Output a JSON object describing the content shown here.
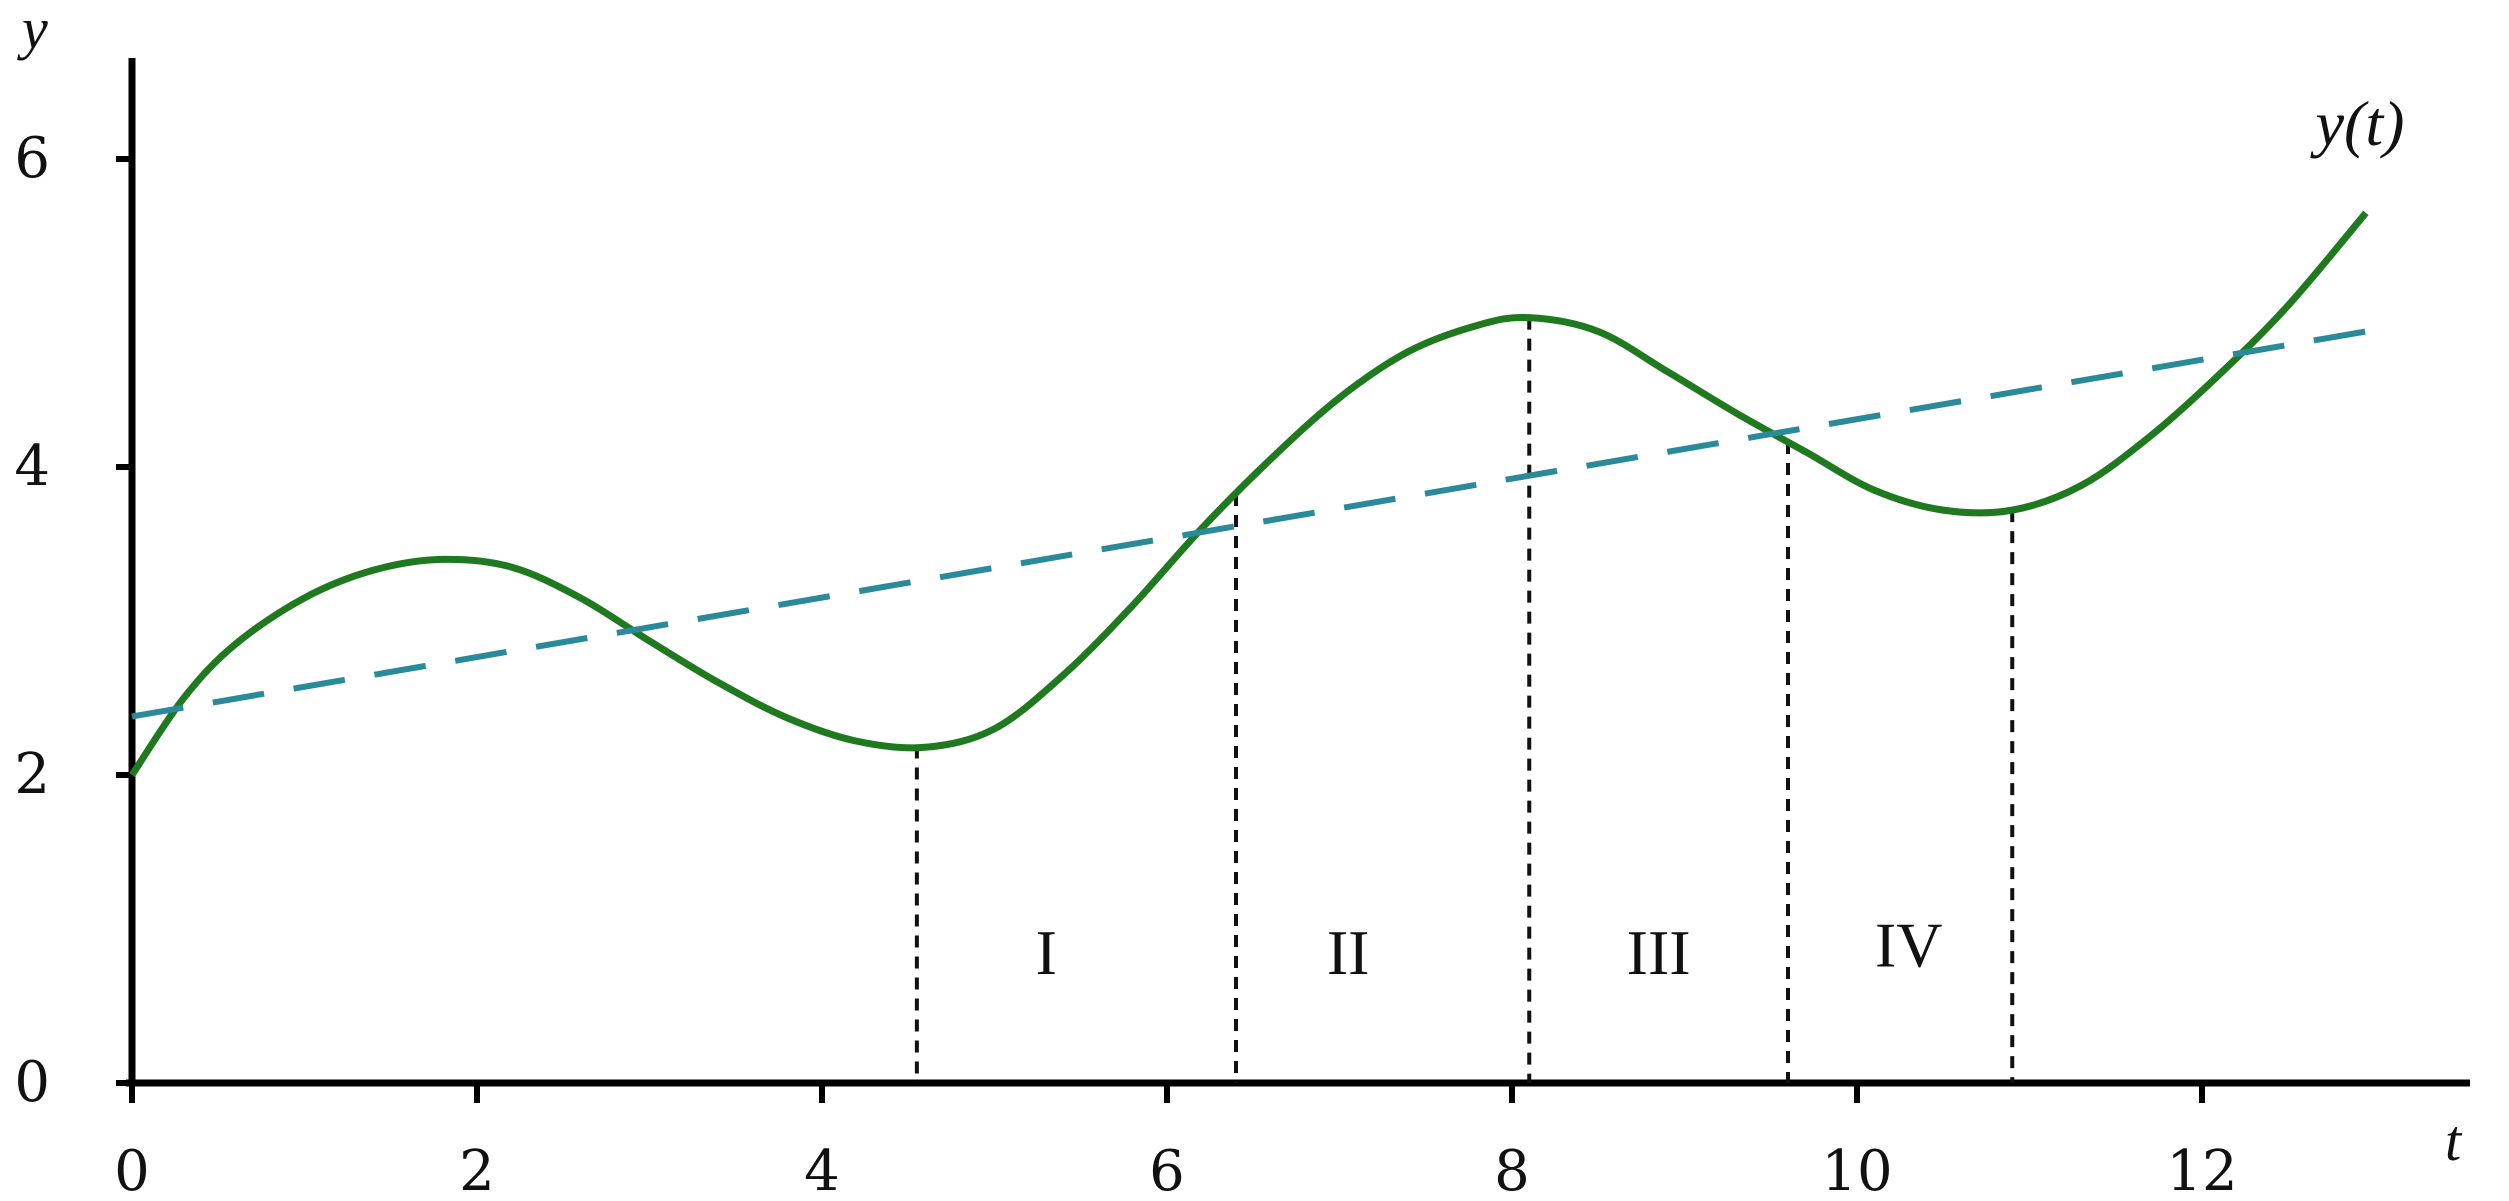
{
  "chart_data": {
    "type": "line",
    "title": "",
    "xlabel": "t",
    "ylabel": "y",
    "xlim": [
      0,
      13
    ],
    "ylim": [
      0,
      6.5
    ],
    "xticks": [
      0,
      2,
      4,
      6,
      8,
      10,
      12
    ],
    "yticks": [
      0,
      2,
      4,
      6
    ],
    "grid": false,
    "series": [
      {
        "name": "y(t)",
        "style": "solid",
        "color": "#1f7a1f",
        "x": [
          0,
          0.3,
          0.6,
          1.0,
          1.4,
          1.8,
          2.2,
          2.6,
          3.0,
          3.4,
          3.8,
          4.2,
          4.6,
          5.0,
          5.4,
          5.8,
          6.2,
          6.6,
          7.0,
          7.4,
          7.8,
          8.1,
          8.5,
          8.9,
          9.3,
          9.7,
          10.1,
          10.5,
          10.9,
          11.3,
          11.7,
          12.1,
          12.5,
          12.95
        ],
        "y": [
          2.0,
          2.5,
          2.85,
          3.15,
          3.33,
          3.4,
          3.35,
          3.15,
          2.87,
          2.6,
          2.37,
          2.22,
          2.18,
          2.3,
          2.65,
          3.1,
          3.6,
          4.05,
          4.45,
          4.75,
          4.92,
          4.97,
          4.88,
          4.62,
          4.35,
          4.1,
          3.85,
          3.72,
          3.72,
          3.88,
          4.2,
          4.6,
          5.05,
          5.65
        ]
      },
      {
        "name": "",
        "style": "dashed",
        "color": "#2a8a9a",
        "x": [
          0,
          12.95
        ],
        "y": [
          2.38,
          4.88
        ]
      }
    ],
    "annotations": {
      "curve_label": "y(t)",
      "dividers_t": [
        4.55,
        6.4,
        8.1,
        9.6,
        10.9
      ],
      "regions": [
        {
          "label": "I",
          "t": 5.3,
          "y": 0.85
        },
        {
          "label": "II",
          "t": 7.05,
          "y": 0.85
        },
        {
          "label": "III",
          "t": 8.85,
          "y": 0.85
        },
        {
          "label": "IV",
          "t": 10.3,
          "y": 0.9
        }
      ]
    }
  }
}
